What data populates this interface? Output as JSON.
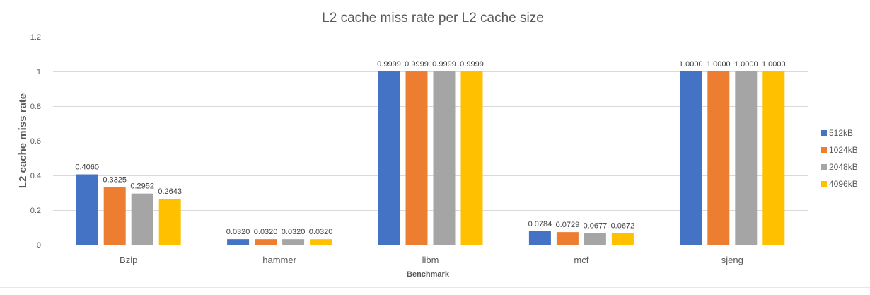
{
  "chart_data": {
    "type": "bar",
    "title": "L2 cache miss rate per L2 cache size",
    "xlabel": "Benchmark",
    "ylabel": "L2 cache miss rate",
    "categories": [
      "Bzip",
      "hammer",
      "libm",
      "mcf",
      "sjeng"
    ],
    "ylim": [
      0,
      1.2
    ],
    "yticks": [
      0,
      0.2,
      0.4,
      0.6,
      0.8,
      1,
      1.2
    ],
    "ytick_labels": [
      "0",
      "0.2",
      "0.4",
      "0.6",
      "0.8",
      "1",
      "1.2"
    ],
    "grid": true,
    "legend_position": "right",
    "series": [
      {
        "name": "512kB",
        "color": "#4472C4",
        "values": [
          0.406,
          0.032,
          0.9999,
          0.0784,
          1.0
        ],
        "labels": [
          "0.4060",
          "0.0320",
          "0.9999",
          "0.0784",
          "1.0000"
        ]
      },
      {
        "name": "1024kB",
        "color": "#ED7D31",
        "values": [
          0.3325,
          0.032,
          0.9999,
          0.0729,
          1.0
        ],
        "labels": [
          "0.3325",
          "0.0320",
          "0.9999",
          "0.0729",
          "1.0000"
        ]
      },
      {
        "name": "2048kB",
        "color": "#A5A5A5",
        "values": [
          0.2952,
          0.032,
          0.9999,
          0.0677,
          1.0
        ],
        "labels": [
          "0.2952",
          "0.0320",
          "0.9999",
          "0.0677",
          "1.0000"
        ]
      },
      {
        "name": "4096kB",
        "color": "#FFC000",
        "values": [
          0.2643,
          0.032,
          0.9999,
          0.0672,
          1.0
        ],
        "labels": [
          "0.2643",
          "0.0320",
          "0.9999",
          "0.0672",
          "1.0000"
        ]
      }
    ]
  }
}
